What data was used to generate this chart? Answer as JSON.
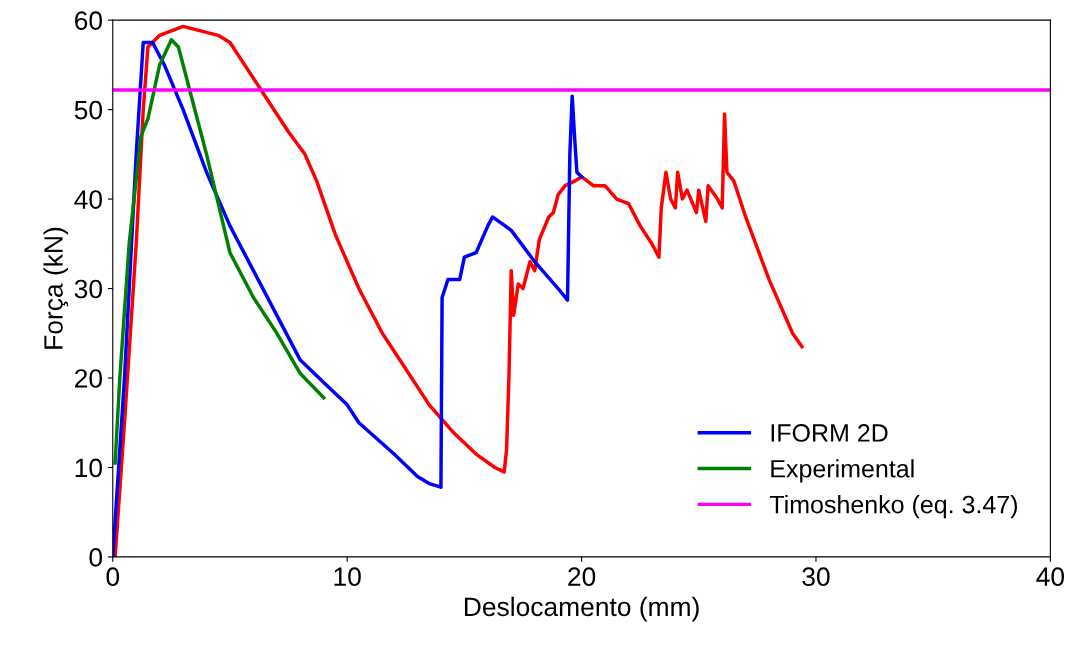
{
  "chart_data": {
    "type": "line",
    "xlabel": "Deslocamento (mm)",
    "ylabel": "Força (kN)",
    "xlim": [
      0,
      40
    ],
    "ylim": [
      0,
      60
    ],
    "xticks": [
      0,
      10,
      20,
      30,
      40
    ],
    "yticks": [
      0,
      10,
      20,
      30,
      40,
      50,
      60
    ],
    "grid": false,
    "legend": "bottom right",
    "marker": "none",
    "line_style": "solid",
    "series": [
      {
        "color": "#ff0000",
        "x": [
          0.1,
          0.5,
          1.0,
          1.3,
          1.5,
          2,
          3,
          4.5,
          5,
          5.5,
          6.5,
          7.5,
          8.2,
          8.7,
          9.5,
          10.5,
          11.5,
          12.5,
          13.5,
          14.5,
          15.5,
          16.3,
          16.7,
          16.8,
          16.9,
          17,
          17.1,
          17.3,
          17.5,
          17.8,
          18,
          18.2,
          18.6,
          18.8,
          19,
          19.3,
          19.7,
          20,
          20.5,
          21,
          21.5,
          22,
          22.5,
          23,
          23.3,
          23.4,
          23.6,
          23.8,
          24.0,
          24.1,
          24.3,
          24.5,
          24.9,
          25,
          25.3,
          25.4,
          25.8,
          26,
          26.1,
          26.2,
          26.5,
          27,
          28,
          29,
          29.4
        ],
        "values": [
          0,
          15,
          35,
          50,
          57,
          58.3,
          59.3,
          58.3,
          57.5,
          55.5,
          51.5,
          47.5,
          45,
          42,
          36,
          30,
          25,
          21,
          17,
          14,
          11.5,
          10,
          9.5,
          12,
          20,
          32,
          27,
          30.5,
          30,
          33,
          32,
          35.5,
          38,
          38.5,
          40.5,
          41.5,
          42,
          42.5,
          41.5,
          41.5,
          40,
          39.5,
          37,
          35,
          33.5,
          39,
          43,
          40,
          39,
          43,
          40,
          41,
          38.5,
          41,
          37.5,
          41.5,
          40,
          39,
          49.5,
          43,
          42,
          38,
          31,
          25,
          23.5
        ]
      },
      {
        "name": "IFORM 2D",
        "color": "#0000ff",
        "x": [
          0,
          0.5,
          1,
          1.3,
          1.7,
          2.2,
          3,
          4,
          5,
          6,
          7,
          8,
          9,
          10,
          10.5,
          12,
          13,
          13.5,
          14,
          14.05,
          14.3,
          14.8,
          15,
          15.5,
          16,
          16.2,
          17,
          18,
          19,
          19.4,
          19.5,
          19.6,
          19.7,
          19.8,
          20
        ],
        "values": [
          0,
          20,
          45,
          57.5,
          57.5,
          55,
          50,
          43,
          37,
          32,
          27,
          22,
          19.5,
          17,
          15,
          11.5,
          9,
          8.2,
          7.8,
          29,
          31,
          31,
          33.5,
          34,
          37,
          38,
          36.5,
          33,
          30,
          28.7,
          45,
          51.5,
          47,
          43,
          42.5
        ]
      },
      {
        "name": "Experimental",
        "color": "#008000",
        "x": [
          0.1,
          0.3,
          0.7,
          1.2,
          1.5,
          2,
          2.5,
          2.8,
          3.3,
          4,
          5,
          6,
          7,
          8,
          9
        ],
        "values": [
          10.5,
          20,
          35,
          47,
          49,
          55,
          57.8,
          57,
          52,
          45,
          34,
          29,
          25,
          20.5,
          17.8
        ]
      }
    ],
    "ref_lines": [
      {
        "axis": "y",
        "value": 52.2,
        "label": "Timoshenko (eq. 3.47)",
        "color": "#ff00ff"
      }
    ]
  }
}
